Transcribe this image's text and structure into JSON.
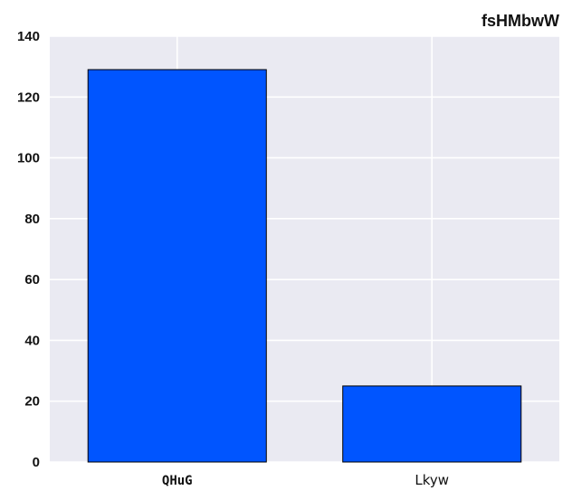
{
  "chart_data": {
    "type": "bar",
    "title": "fsHMbwW",
    "categories": [
      "QHuG",
      "Lkyw"
    ],
    "values": [
      129,
      25
    ],
    "xlabel": "",
    "ylabel": "",
    "ylim": [
      0,
      140
    ],
    "yticks": [
      "0",
      "20",
      "40",
      "60",
      "80",
      "100",
      "120",
      "140"
    ],
    "grid": true,
    "legend": "none",
    "colors": {
      "bar": "#0055ff",
      "bar_edge": "#000000",
      "plot_background": "#eaeaf2",
      "grid": "#ffffff"
    }
  }
}
